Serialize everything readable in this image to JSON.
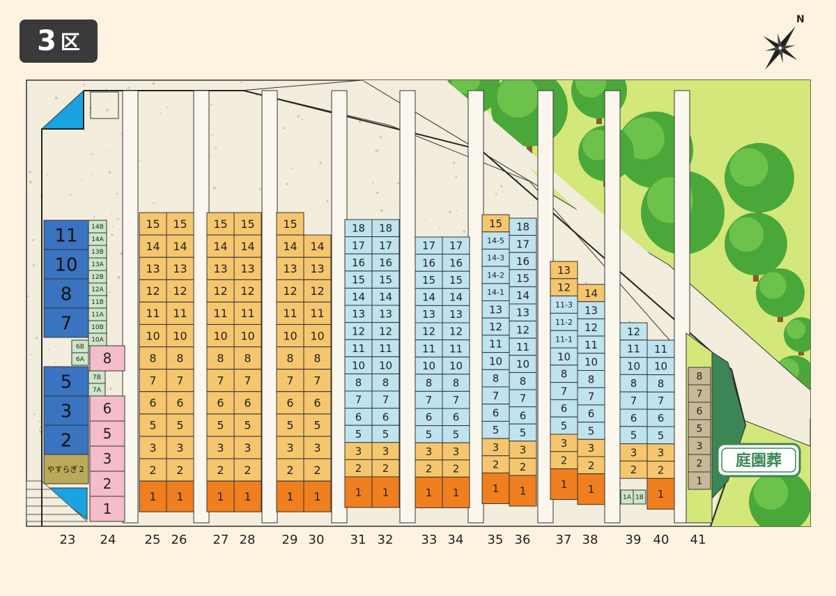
{
  "area": {
    "number": "3",
    "suffix": "区"
  },
  "compass": {
    "north_label": "N"
  },
  "garden": {
    "label": "庭園葬"
  },
  "colors": {
    "background": "#fdf3e0",
    "path": "#f3eddd",
    "orange_light": "#f6c66e",
    "orange_dark": "#ef7f1f",
    "blue_light": "#bfe3ef",
    "blue_dark": "#3a73c0",
    "pink": "#f5bccb",
    "green_small": "#cde6c8",
    "olive": "#bba95a",
    "tan": "#c7b898",
    "lawn": "#d4e77a",
    "dark_green": "#3c8655",
    "accent_blue": "#1aa3e0",
    "tree_green": "#4aa83a",
    "tree_trunk": "#8a5a2b"
  },
  "columns": [
    {
      "id": "23",
      "label": "23"
    },
    {
      "id": "24",
      "label": "24"
    },
    {
      "id": "25",
      "label": "25"
    },
    {
      "id": "26",
      "label": "26"
    },
    {
      "id": "27",
      "label": "27"
    },
    {
      "id": "28",
      "label": "28"
    },
    {
      "id": "29",
      "label": "29"
    },
    {
      "id": "30",
      "label": "30"
    },
    {
      "id": "31",
      "label": "31"
    },
    {
      "id": "32",
      "label": "32"
    },
    {
      "id": "33",
      "label": "33"
    },
    {
      "id": "34",
      "label": "34"
    },
    {
      "id": "35",
      "label": "35"
    },
    {
      "id": "36",
      "label": "36"
    },
    {
      "id": "37",
      "label": "37"
    },
    {
      "id": "38",
      "label": "38"
    },
    {
      "id": "39",
      "label": "39"
    },
    {
      "id": "40",
      "label": "40"
    },
    {
      "id": "41",
      "label": "41"
    }
  ],
  "col23": {
    "plots": [
      "11",
      "10",
      "8",
      "7",
      "5",
      "3",
      "2"
    ],
    "special": "やすらぎ２"
  },
  "col23_small": [
    "14B",
    "14A",
    "13B",
    "13A",
    "12B",
    "12A",
    "11B",
    "11A",
    "10B",
    "10A",
    "6B",
    "6A",
    "7B",
    "7A"
  ],
  "col24": [
    "8",
    "6",
    "5",
    "3",
    "2",
    "1"
  ],
  "orange_cols": [
    "15",
    "14",
    "13",
    "12",
    "11",
    "10",
    "8",
    "7",
    "6",
    "5",
    "3",
    "2",
    "1"
  ],
  "blue_cols_18": [
    "18",
    "17",
    "16",
    "15",
    "14",
    "13",
    "12",
    "11",
    "10",
    "8",
    "7",
    "6",
    "5",
    "3",
    "2",
    "1"
  ],
  "blue_cols_17": [
    "17",
    "16",
    "15",
    "14",
    "13",
    "12",
    "11",
    "10",
    "8",
    "7",
    "6",
    "5",
    "3",
    "2",
    "1"
  ],
  "col35": [
    "15",
    "14-5",
    "14-3",
    "14-2",
    "14-1",
    "13",
    "12",
    "11",
    "10",
    "8",
    "7",
    "6",
    "5",
    "3",
    "2",
    "1"
  ],
  "col36": [
    "18",
    "17",
    "16",
    "15",
    "14",
    "13",
    "12",
    "11",
    "10",
    "8",
    "7",
    "6",
    "5",
    "3",
    "2",
    "1"
  ],
  "col37": [
    "13",
    "12",
    "11-3",
    "11-2",
    "11-1",
    "10",
    "8",
    "7",
    "6",
    "5",
    "3",
    "2",
    "1"
  ],
  "col38": [
    "14",
    "13",
    "12",
    "11",
    "10",
    "8",
    "7",
    "6",
    "5",
    "3",
    "2",
    "1"
  ],
  "col39": [
    "12",
    "11",
    "10",
    "8",
    "7",
    "6",
    "5",
    "3",
    "2"
  ],
  "col39_small": [
    "1A",
    "1B"
  ],
  "col40": [
    "11",
    "10",
    "8",
    "7",
    "6",
    "5",
    "3",
    "2",
    "1"
  ],
  "col41": [
    "8",
    "7",
    "6",
    "5",
    "3",
    "2",
    "1"
  ]
}
